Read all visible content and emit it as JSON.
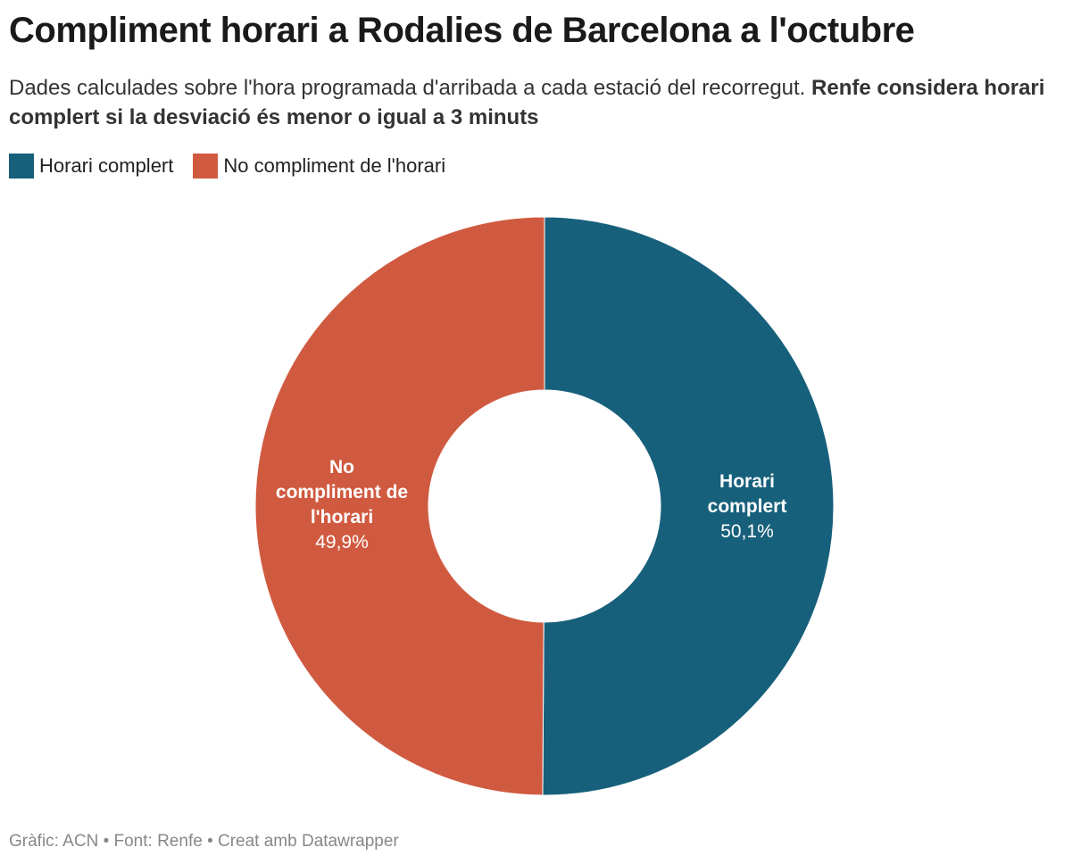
{
  "chart_data": {
    "type": "donut",
    "title": "Compliment horari a Rodalies de Barcelona a l'octubre",
    "subtitle": "Dades calculades sobre l'hora programada d'arribada a cada estació del recorregut.",
    "subtitle_bold": "Renfe considera horari complert si la desviació és menor o igual a 3 minuts",
    "categories": [
      "Horari complert",
      "No compliment de l'horari"
    ],
    "values": [
      50.1,
      49.9
    ],
    "value_labels": [
      "50,1%",
      "49,9%"
    ],
    "colors": [
      "#17607b",
      "#d05a40"
    ],
    "source": "Gràfic: ACN • Font: Renfe • Creat amb Datawrapper"
  }
}
